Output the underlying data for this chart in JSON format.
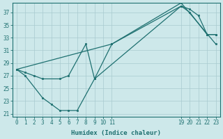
{
  "bg_color": "#cde8ea",
  "grid_color": "#a8cacf",
  "line_color": "#1e7070",
  "marker_color": "#1e7070",
  "xlabel": "Humidex (Indice chaleur)",
  "xlim": [
    -0.5,
    23.5
  ],
  "ylim": [
    20.5,
    38.5
  ],
  "xtick_positions": [
    0,
    1,
    2,
    3,
    4,
    5,
    6,
    7,
    8,
    9,
    10,
    11,
    19,
    20,
    21,
    22,
    23
  ],
  "xtick_labels": [
    "0",
    "1",
    "2",
    "3",
    "4",
    "5",
    "6",
    "7",
    "8",
    "9",
    "10",
    "11",
    "19",
    "20",
    "21",
    "22",
    "23"
  ],
  "yticks": [
    21,
    23,
    25,
    27,
    29,
    31,
    33,
    35,
    37
  ],
  "line1_x": [
    0,
    1,
    3,
    4,
    5,
    6,
    7,
    9,
    19,
    20,
    22,
    23
  ],
  "line1_y": [
    28,
    27,
    23.5,
    22.5,
    21.5,
    21.5,
    21.5,
    26.5,
    38,
    37,
    33.5,
    33.5
  ],
  "line2_x": [
    0,
    1,
    2,
    3,
    5,
    6,
    8,
    9,
    11,
    19,
    20,
    21,
    22,
    23
  ],
  "line2_y": [
    28,
    27.5,
    27,
    26.5,
    26.5,
    27,
    32,
    26.5,
    32,
    38,
    37.5,
    36.5,
    33.5,
    33.5
  ],
  "line3_x": [
    0,
    11,
    19,
    23
  ],
  "line3_y": [
    28,
    32,
    38.5,
    32
  ]
}
